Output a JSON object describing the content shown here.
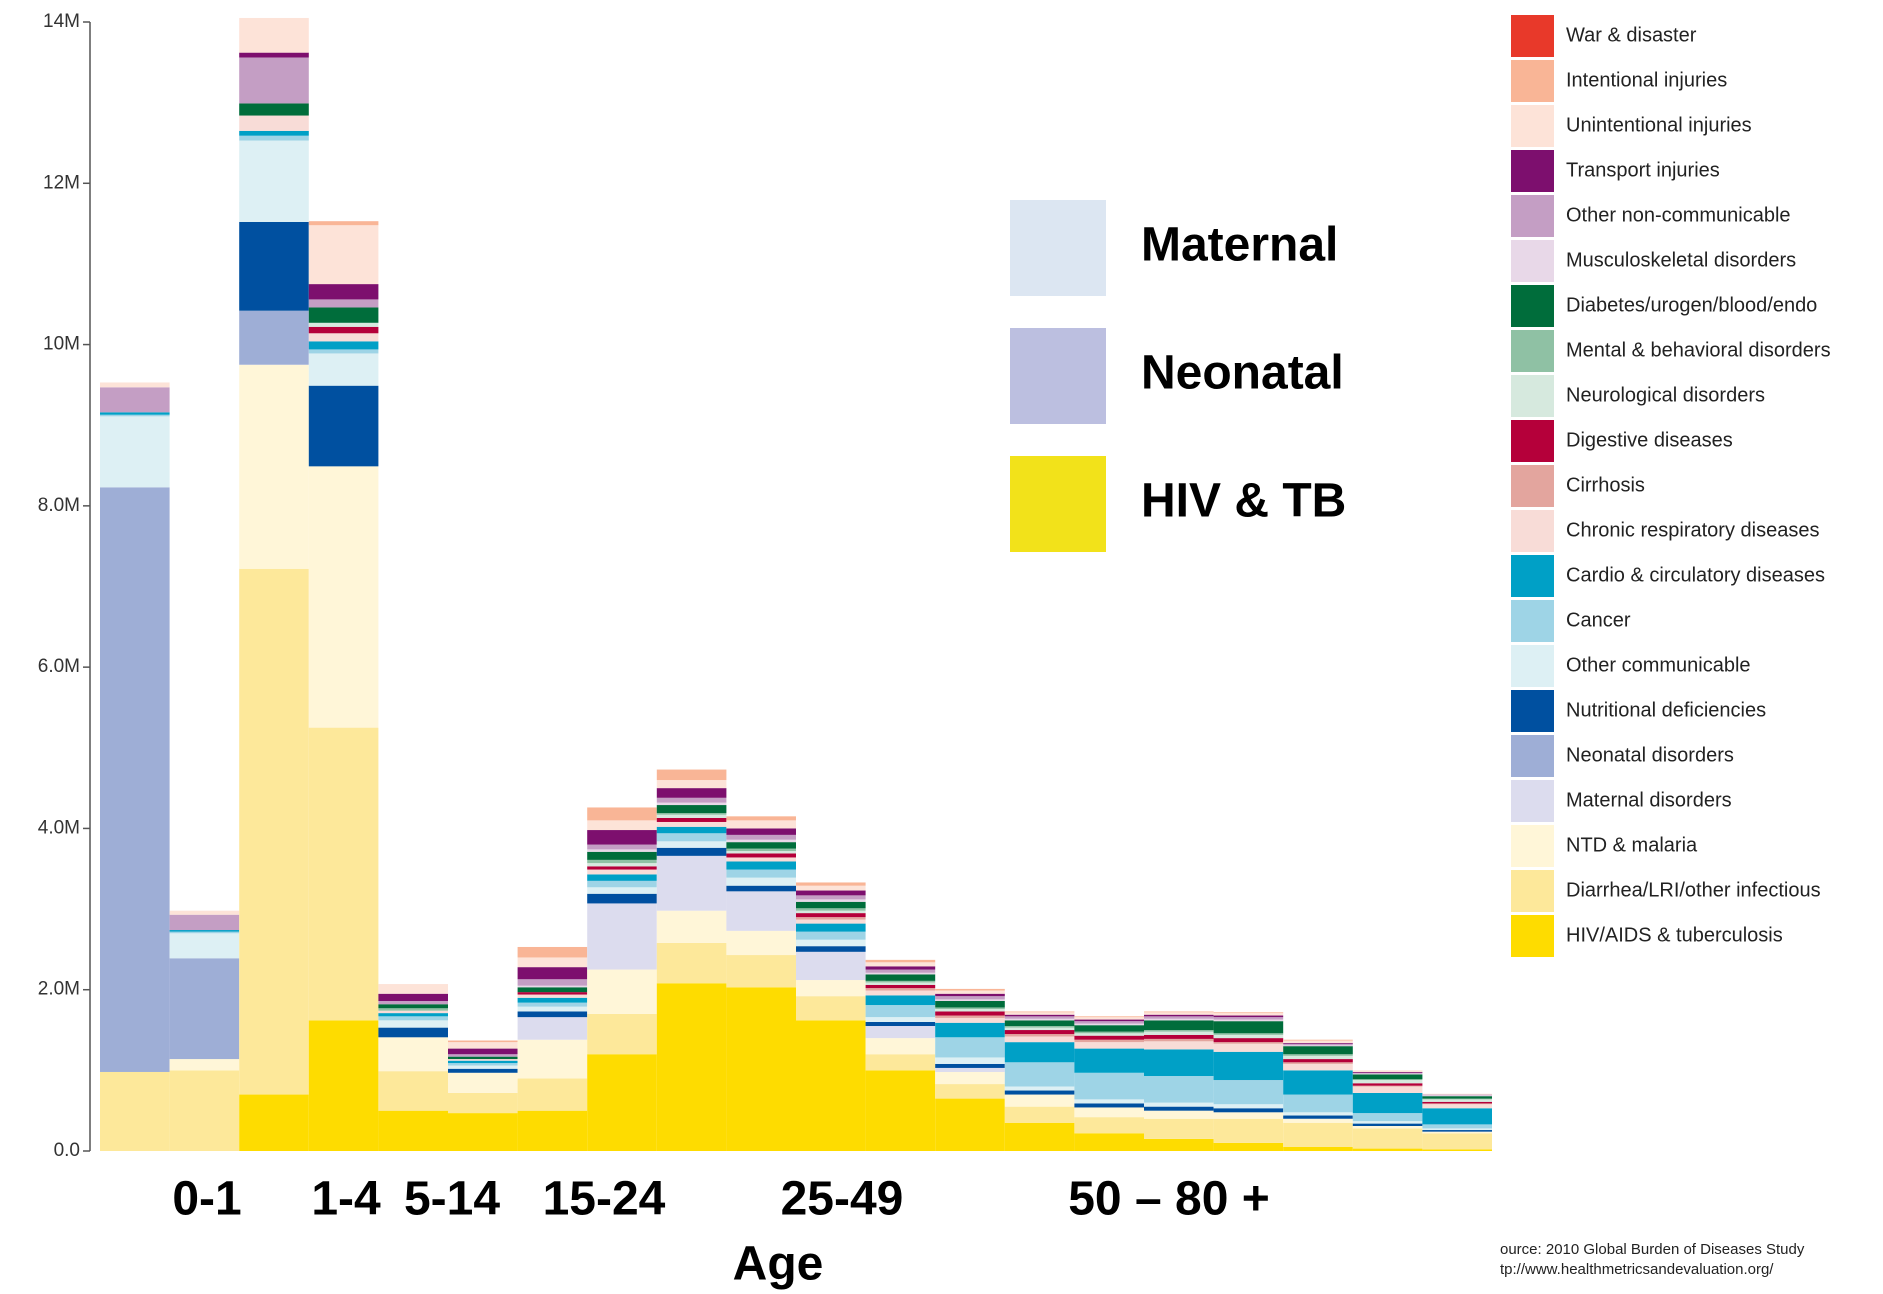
{
  "chart_data": {
    "type": "stacked_bar",
    "categories": [
      null,
      null,
      null,
      null,
      null,
      null,
      null,
      null,
      null,
      null,
      null,
      null,
      null,
      null,
      null,
      null,
      null,
      null,
      null,
      null
    ],
    "ylim": [
      0,
      14000000
    ],
    "yticks": [
      {
        "value": 0,
        "label": "0.0"
      },
      {
        "value": 2000000,
        "label": "2.0M"
      },
      {
        "value": 4000000,
        "label": "4.0M"
      },
      {
        "value": 6000000,
        "label": "6.0M"
      },
      {
        "value": 8000000,
        "label": "8.0M"
      },
      {
        "value": 10000000,
        "label": "10M"
      },
      {
        "value": 12000000,
        "label": "12M"
      },
      {
        "value": 14000000,
        "label": "14M"
      }
    ],
    "xlabel": "Age",
    "age_labels": [
      "0-1",
      "1-4",
      "5-14",
      "15-24",
      "25-49",
      "50 – 80 +"
    ],
    "highlight_legend": [
      {
        "label": "Maternal",
        "color": "#dce6f2"
      },
      {
        "label": "Neonatal",
        "color": "#bcbfe0"
      },
      {
        "label": "HIV & TB",
        "color": "#f2e21a"
      }
    ],
    "source": [
      "ource: 2010 Global Burden of Diseases Study",
      "tp://www.healthmetricsandevaluation.org/"
    ],
    "series": [
      {
        "name": "War & disaster",
        "color": "#e8392a",
        "values": [
          0,
          0,
          0,
          0,
          0,
          0,
          0,
          0,
          0,
          0,
          0,
          0,
          0,
          0,
          0,
          0,
          0,
          0,
          0,
          0
        ]
      },
      {
        "name": "Intentional injuries",
        "color": "#f9b596",
        "values": [
          0,
          0,
          0,
          50000,
          0,
          20000,
          130000,
          160000,
          130000,
          50000,
          40000,
          30000,
          20000,
          10000,
          10000,
          10000,
          10000,
          10000,
          0,
          0
        ]
      },
      {
        "name": "Unintentional injuries",
        "color": "#fde3d8",
        "values": [
          60000,
          50000,
          430000,
          730000,
          120000,
          80000,
          120000,
          120000,
          100000,
          100000,
          60000,
          50000,
          40000,
          30000,
          30000,
          30000,
          30000,
          30000,
          20000,
          10000
        ]
      },
      {
        "name": "Transport injuries",
        "color": "#7d0f6e",
        "values": [
          0,
          0,
          60000,
          190000,
          90000,
          70000,
          150000,
          180000,
          120000,
          80000,
          60000,
          40000,
          30000,
          20000,
          20000,
          20000,
          20000,
          10000,
          10000,
          0
        ]
      },
      {
        "name": "Other non-communicable",
        "color": "#c49ec4",
        "values": [
          310000,
          190000,
          570000,
          100000,
          40000,
          30000,
          80000,
          60000,
          60000,
          60000,
          50000,
          40000,
          40000,
          30000,
          30000,
          30000,
          30000,
          20000,
          10000,
          10000
        ]
      },
      {
        "name": "Musculoskeletal disorders",
        "color": "#e8d8e8",
        "values": [
          0,
          0,
          0,
          0,
          0,
          0,
          20000,
          30000,
          30000,
          30000,
          30000,
          20000,
          20000,
          20000,
          20000,
          20000,
          20000,
          10000,
          10000,
          10000
        ]
      },
      {
        "name": "Diabetes/urogen/blood/endo",
        "color": "#006d3b",
        "values": [
          0,
          0,
          150000,
          190000,
          50000,
          30000,
          60000,
          100000,
          100000,
          80000,
          80000,
          80000,
          80000,
          70000,
          80000,
          120000,
          150000,
          100000,
          60000,
          30000
        ]
      },
      {
        "name": "Mental & behavioral disorders",
        "color": "#8fc1a4",
        "values": [
          0,
          0,
          0,
          0,
          30000,
          0,
          0,
          40000,
          20000,
          30000,
          30000,
          20000,
          20000,
          20000,
          20000,
          20000,
          20000,
          20000,
          10000,
          10000
        ]
      },
      {
        "name": "Neurological disorders",
        "color": "#d6e9de",
        "values": [
          0,
          0,
          0,
          50000,
          0,
          0,
          0,
          40000,
          40000,
          30000,
          30000,
          30000,
          30000,
          30000,
          30000,
          40000,
          40000,
          40000,
          40000,
          30000
        ]
      },
      {
        "name": "Digestive diseases",
        "color": "#b5003a",
        "values": [
          0,
          0,
          0,
          80000,
          0,
          0,
          30000,
          40000,
          50000,
          50000,
          50000,
          40000,
          50000,
          50000,
          50000,
          50000,
          50000,
          40000,
          30000,
          20000
        ]
      },
      {
        "name": "Cirrhosis",
        "color": "#e3a59e",
        "values": [
          0,
          0,
          0,
          0,
          0,
          0,
          0,
          0,
          0,
          0,
          30000,
          30000,
          30000,
          30000,
          30000,
          30000,
          20000,
          20000,
          10000,
          10000
        ]
      },
      {
        "name": "Chronic respiratory diseases",
        "color": "#f8dcd7",
        "values": [
          0,
          0,
          190000,
          100000,
          30000,
          20000,
          40000,
          60000,
          60000,
          50000,
          50000,
          60000,
          60000,
          70000,
          80000,
          100000,
          100000,
          80000,
          80000,
          50000
        ]
      },
      {
        "name": "Cardio & circulatory diseases",
        "color": "#00a0c6",
        "values": [
          30000,
          20000,
          60000,
          100000,
          40000,
          30000,
          60000,
          80000,
          80000,
          100000,
          100000,
          120000,
          180000,
          250000,
          300000,
          330000,
          350000,
          300000,
          250000,
          200000
        ]
      },
      {
        "name": "Cancer",
        "color": "#9ed4e6",
        "values": [
          20000,
          20000,
          60000,
          50000,
          50000,
          30000,
          50000,
          80000,
          100000,
          100000,
          100000,
          150000,
          250000,
          300000,
          330000,
          330000,
          300000,
          220000,
          100000,
          50000
        ]
      },
      {
        "name": "Other communicable",
        "color": "#ddf0f4",
        "values": [
          880000,
          310000,
          1010000,
          400000,
          90000,
          40000,
          60000,
          80000,
          80000,
          100000,
          80000,
          60000,
          80000,
          50000,
          50000,
          50000,
          50000,
          40000,
          30000,
          20000
        ]
      },
      {
        "name": "Nutritional deficiencies",
        "color": "#0050a0",
        "values": [
          0,
          0,
          1100000,
          1000000,
          120000,
          50000,
          70000,
          120000,
          100000,
          70000,
          70000,
          50000,
          50000,
          50000,
          50000,
          50000,
          50000,
          40000,
          30000,
          20000
        ]
      },
      {
        "name": "Neonatal disorders",
        "color": "#9eaed6",
        "values": [
          7250000,
          1250000,
          670000,
          0,
          0,
          0,
          0,
          0,
          0,
          0,
          0,
          0,
          0,
          0,
          0,
          0,
          0,
          0,
          0,
          0
        ]
      },
      {
        "name": "Maternal disorders",
        "color": "#dcdcee",
        "values": [
          0,
          0,
          0,
          0,
          0,
          0,
          280000,
          820000,
          680000,
          490000,
          350000,
          150000,
          50000,
          0,
          0,
          0,
          0,
          0,
          0,
          0
        ]
      },
      {
        "name": "NTD & malaria",
        "color": "#fff6d8",
        "values": [
          0,
          140000,
          2530000,
          3240000,
          420000,
          250000,
          480000,
          550000,
          400000,
          300000,
          200000,
          200000,
          150000,
          150000,
          120000,
          100000,
          80000,
          50000,
          30000,
          20000
        ]
      },
      {
        "name": "Diarrhea/LRI/other infectious",
        "color": "#fde89a",
        "values": [
          980000,
          1000000,
          6520000,
          3630000,
          490000,
          250000,
          400000,
          500000,
          500000,
          400000,
          300000,
          200000,
          180000,
          200000,
          200000,
          250000,
          300000,
          300000,
          250000,
          200000
        ]
      },
      {
        "name": "HIV/AIDS & tuberculosis",
        "color": "#fedc00",
        "values": [
          0,
          0,
          700000,
          1620000,
          500000,
          470000,
          500000,
          1200000,
          2080000,
          2030000,
          1620000,
          1000000,
          650000,
          350000,
          220000,
          150000,
          100000,
          50000,
          30000,
          20000
        ]
      }
    ]
  }
}
